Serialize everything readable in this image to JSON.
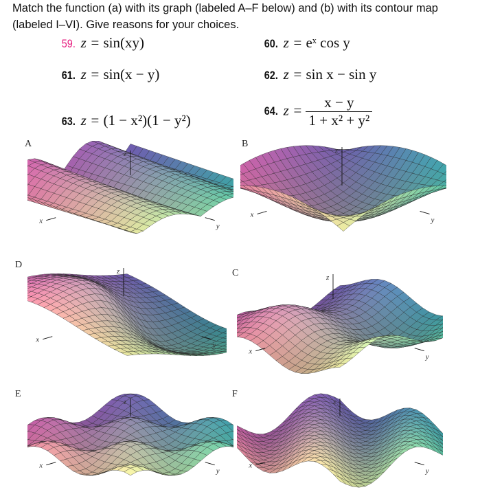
{
  "instructions": "Match the function (a) with its graph (labeled A–F below) and (b) with its contour map (labeled I–VI). Give reasons for your choices.",
  "problems": [
    {
      "number": "59.",
      "lhs": "z = ",
      "rhs": "sin(xy)",
      "highlight": true
    },
    {
      "number": "60.",
      "lhs": "z = ",
      "rhs": "eˣ cos y"
    },
    {
      "number": "61.",
      "lhs": "z = ",
      "rhs": "sin(x − y)"
    },
    {
      "number": "62.",
      "lhs": "z = ",
      "rhs": "sin x − sin y"
    },
    {
      "number": "63.",
      "lhs": "z = ",
      "rhs": "(1 − x²)(1 − y²)"
    },
    {
      "number": "64.",
      "lhs": "z = ",
      "numerator": "x − y",
      "denominator": "1 + x² + y²"
    }
  ],
  "graphs": [
    {
      "label": "A",
      "axes": [
        "z",
        "x",
        "y"
      ]
    },
    {
      "label": "B",
      "axes": [
        "z",
        "x",
        "y"
      ]
    },
    {
      "label": "D",
      "axes": [
        "z",
        "x",
        "y"
      ]
    },
    {
      "label": "C",
      "axes": [
        "z",
        "x",
        "y"
      ]
    },
    {
      "label": "E",
      "axes": [
        "z",
        "x",
        "y"
      ]
    },
    {
      "label": "F",
      "axes": [
        "z",
        "x",
        "y"
      ]
    }
  ],
  "colors": {
    "highlight": "#e6197d",
    "pink": "#e0609a",
    "purple": "#6a5aa8",
    "teal": "#2fb5a0",
    "yellow": "#f2f0a0"
  }
}
